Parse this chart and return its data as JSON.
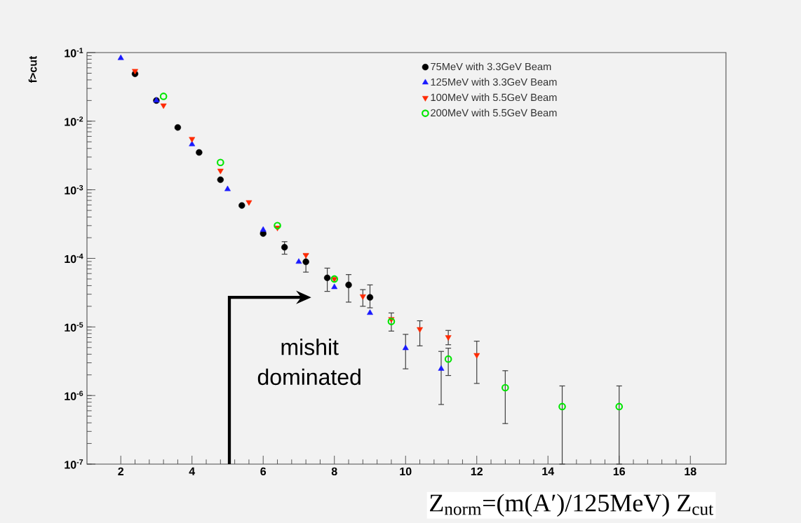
{
  "chart_data": {
    "type": "scatter",
    "xlabel": "Z$_{norm}$=(m(A′)/125MeV)  Z$_{cut}$",
    "ylabel": "f>cut",
    "annotations": [
      "mishit dominated"
    ],
    "log": "y",
    "legend": "top right",
    "xlim": [
      1.05,
      19
    ],
    "ylim": [
      1e-07,
      0.1
    ],
    "xticks": [
      2,
      4,
      6,
      8,
      10,
      12,
      14,
      16,
      18
    ],
    "yticks": [
      {
        "value": 1e-07,
        "label": "10$^{-7}$"
      },
      {
        "value": 1e-06,
        "label": "10$^{-6}$"
      },
      {
        "value": 1e-05,
        "label": "10$^{-5}$"
      },
      {
        "value": 0.0001,
        "label": "10$^{-4}$"
      },
      {
        "value": 0.001,
        "label": "10$^{-3}$"
      },
      {
        "value": 0.01,
        "label": "10$^{-2}$"
      },
      {
        "value": 0.1,
        "label": "10$^{-1}$"
      }
    ],
    "series": [
      {
        "name": "75MeV  with 3.3GeV Beam",
        "color": "#000000",
        "marker": "circle",
        "x": [
          2.4,
          3.0,
          3.6,
          4.2,
          4.8,
          5.4,
          6.0,
          6.6,
          7.2,
          7.8,
          8.4,
          9.0
        ],
        "values": [
          0.049,
          0.02,
          0.0081,
          0.0035,
          0.0014,
          0.00059,
          0.00023,
          0.000145,
          8.9e-05,
          5.2e-05,
          4.1e-05,
          2.7e-05
        ],
        "errors": [
          null,
          null,
          null,
          null,
          null,
          null,
          null,
          [
            0.000115,
            0.000175
          ],
          [
            6.3e-05,
            0.000115
          ],
          [
            3.3e-05,
            7.2e-05
          ],
          [
            2.3e-05,
            5.8e-05
          ],
          [
            1.9e-05,
            4.1e-05
          ]
        ]
      },
      {
        "name": "125MeV with 3.3GeV Beam",
        "color": "#1a1aff",
        "marker": "triangle",
        "x": [
          2,
          3,
          4,
          5,
          6,
          7,
          8,
          9,
          10,
          11
        ],
        "values": [
          0.083,
          0.02,
          0.0046,
          0.00102,
          0.00026,
          8.9e-05,
          3.8e-05,
          1.6e-05,
          4.9e-06,
          2.45e-06
        ],
        "errors": [
          null,
          null,
          null,
          null,
          null,
          null,
          null,
          null,
          [
            2.45e-06,
            7.8e-06
          ],
          [
            7.4e-07,
            4.4e-06
          ]
        ]
      },
      {
        "name": "100MeV with 5.5GeV Beam",
        "color": "#ff2a00",
        "marker": "triangle-down",
        "x": [
          2.4,
          3.2,
          4.0,
          4.8,
          5.6,
          6.4,
          7.2,
          8.0,
          8.8,
          9.6,
          10.4,
          11.2,
          12.0
        ],
        "values": [
          0.054,
          0.017,
          0.0055,
          0.0019,
          0.00066,
          0.00028,
          0.000112,
          5e-05,
          2.8e-05,
          1.3e-05,
          9.3e-06,
          7.1e-06,
          3.9e-06
        ],
        "errors": [
          null,
          null,
          null,
          null,
          null,
          null,
          null,
          null,
          [
            2e-05,
            3.5e-05
          ],
          [
            8.7e-06,
            1.6e-05
          ],
          [
            5.3e-06,
            1.23e-05
          ],
          [
            5.5e-06,
            8.9e-06
          ],
          [
            1.5e-06,
            6.2e-06
          ]
        ]
      },
      {
        "name": "200MeV with 5.5GeV Beam",
        "color": "#00e600",
        "marker": "circle-open",
        "x": [
          3.2,
          4.8,
          6.4,
          8.0,
          9.6,
          11.2,
          12.8,
          14.4,
          16.0
        ],
        "values": [
          0.023,
          0.0025,
          0.0003,
          5e-05,
          1.2e-05,
          3.4e-06,
          1.3e-06,
          6.9e-07,
          6.9e-07
        ],
        "errors": [
          null,
          null,
          null,
          null,
          null,
          [
            1.96e-06,
            4.9e-06
          ],
          [
            3.9e-07,
            2.3e-06
          ],
          [
            1e-07,
            1.38e-06
          ],
          [
            1e-07,
            1.38e-06
          ]
        ]
      }
    ]
  }
}
